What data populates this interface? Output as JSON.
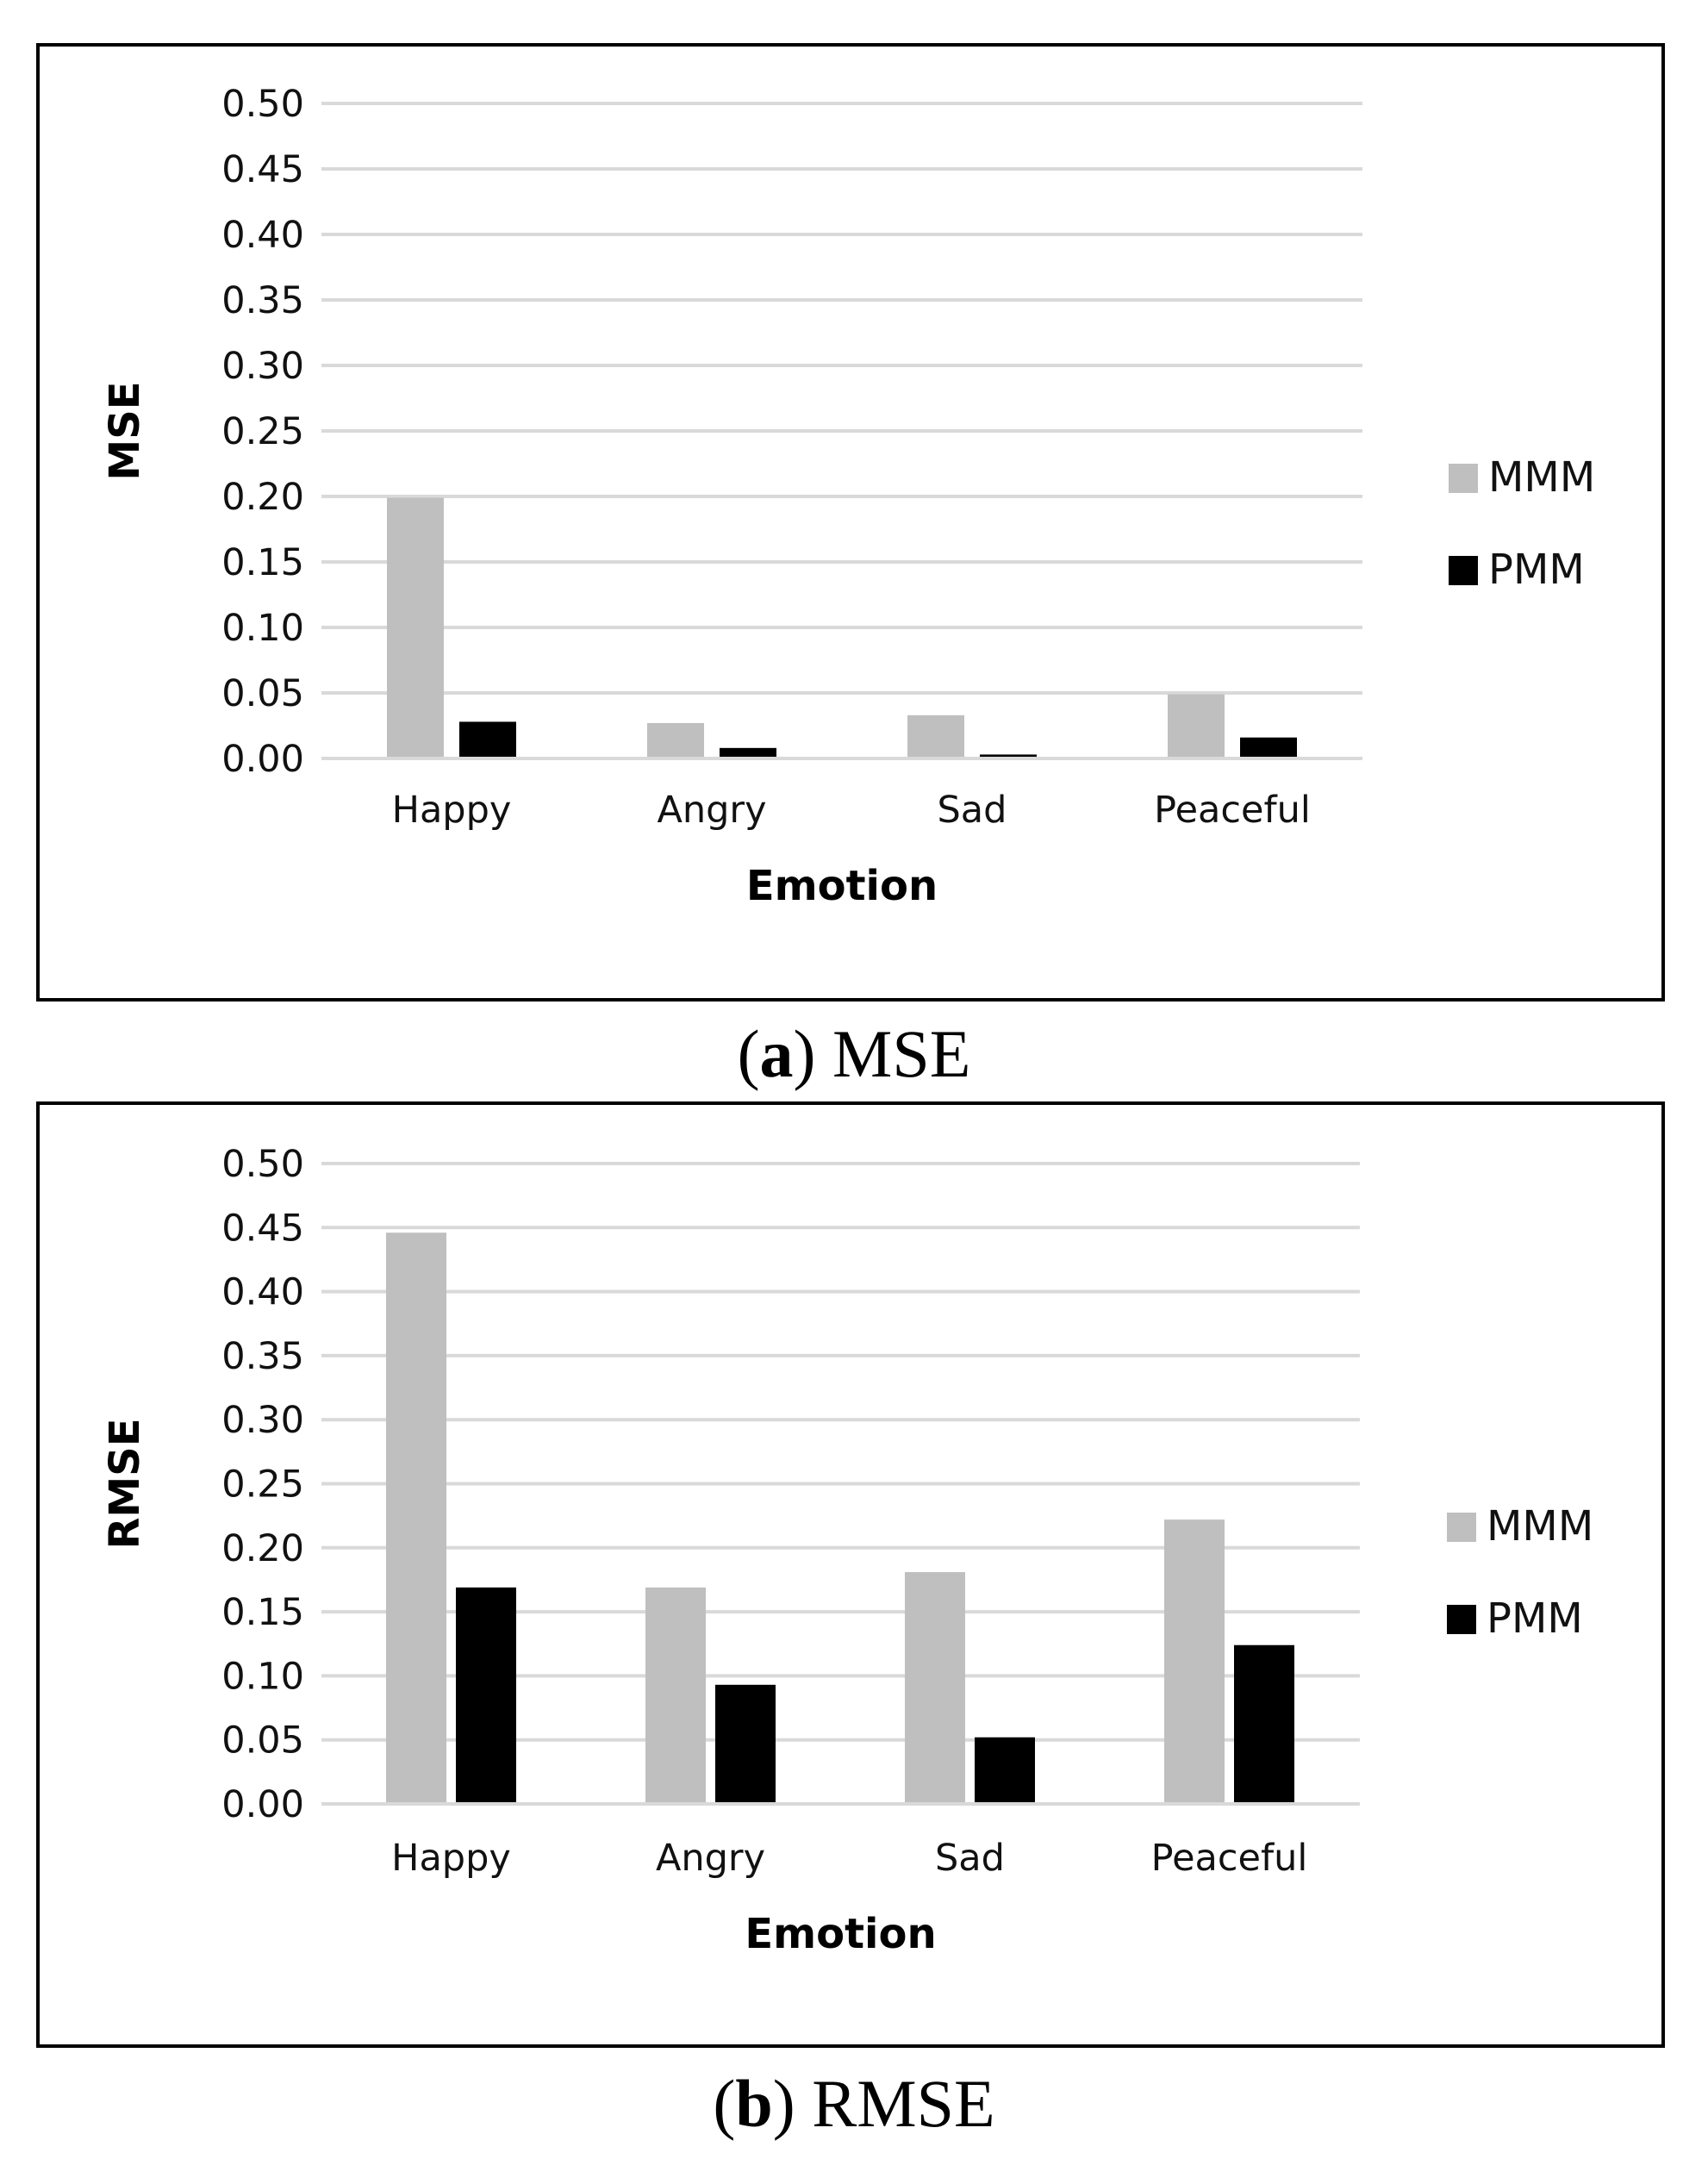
{
  "chart_data": [
    {
      "type": "bar",
      "title": "",
      "xlabel": "Emotion",
      "ylabel": "MSE",
      "ylim": [
        0,
        0.5
      ],
      "yticks": [
        "0.00",
        "0.05",
        "0.10",
        "0.15",
        "0.20",
        "0.25",
        "0.30",
        "0.35",
        "0.40",
        "0.45",
        "0.50"
      ],
      "categories": [
        "Happy",
        "Angry",
        "Sad",
        "Peaceful"
      ],
      "series": [
        {
          "name": "MMM",
          "color": "#bfbfbf",
          "values": [
            0.199,
            0.027,
            0.033,
            0.049
          ]
        },
        {
          "name": "PMM",
          "color": "#000000",
          "values": [
            0.028,
            0.008,
            0.003,
            0.016
          ]
        }
      ],
      "grid": true,
      "legend_position": "right",
      "caption": {
        "letter": "a",
        "text": "MSE"
      }
    },
    {
      "type": "bar",
      "title": "",
      "xlabel": "Emotion",
      "ylabel": "RMSE",
      "ylim": [
        0,
        0.5
      ],
      "yticks": [
        "0.00",
        "0.05",
        "0.10",
        "0.15",
        "0.20",
        "0.25",
        "0.30",
        "0.35",
        "0.40",
        "0.45",
        "0.50"
      ],
      "categories": [
        "Happy",
        "Angry",
        "Sad",
        "Peaceful"
      ],
      "series": [
        {
          "name": "MMM",
          "color": "#bfbfbf",
          "values": [
            0.446,
            0.169,
            0.181,
            0.222
          ]
        },
        {
          "name": "PMM",
          "color": "#000000",
          "values": [
            0.169,
            0.093,
            0.052,
            0.124
          ]
        }
      ],
      "grid": true,
      "legend_position": "right",
      "caption": {
        "letter": "b",
        "text": "RMSE"
      }
    }
  ]
}
